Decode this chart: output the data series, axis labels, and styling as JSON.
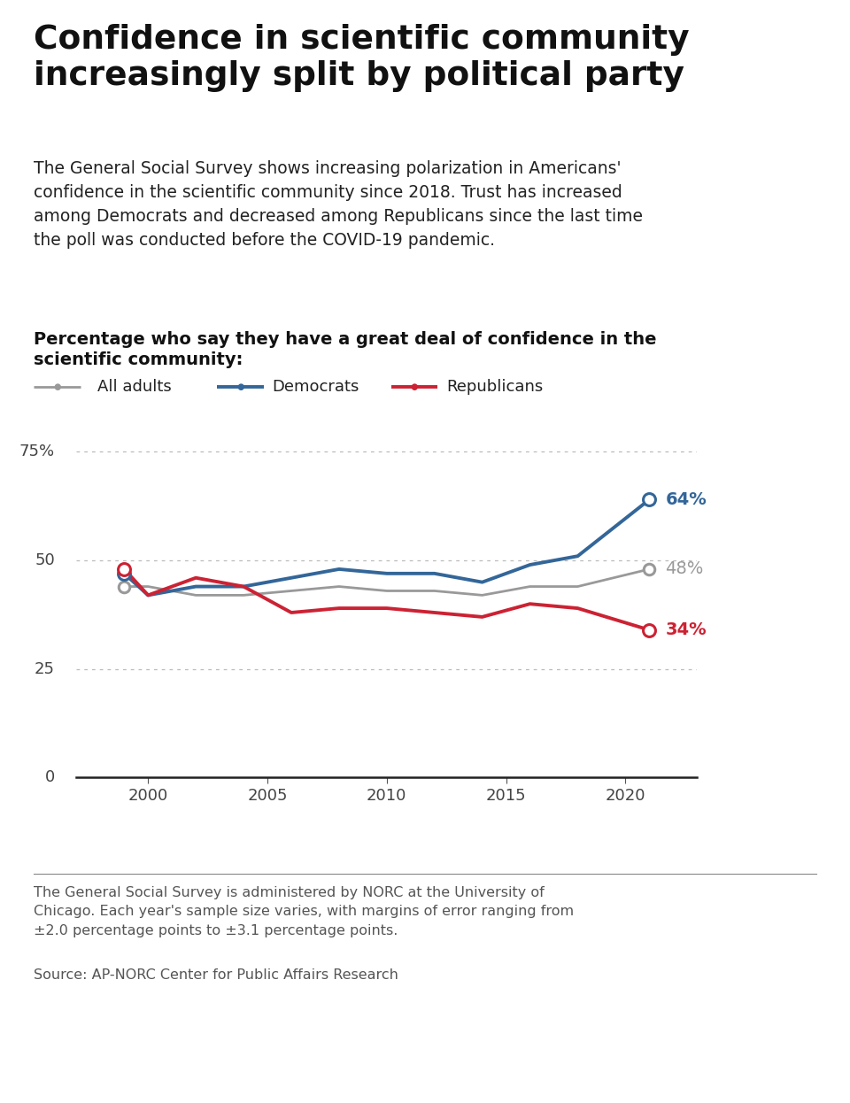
{
  "title": "Confidence in scientific community\nincreasingly split by political party",
  "subtitle": "The General Social Survey shows increasing polarization in Americans'\nconfidence in the scientific community since 2018. Trust has increased\namong Democrats and decreased among Republicans since the last time\nthe poll was conducted before the COVID-19 pandemic.",
  "chart_label": "Percentage who say they have a great deal of confidence in the\nscientific community:",
  "years_all": [
    1999,
    2000,
    2002,
    2004,
    2006,
    2008,
    2010,
    2012,
    2014,
    2016,
    2018,
    2021
  ],
  "all_adults": [
    44,
    44,
    42,
    42,
    43,
    44,
    43,
    43,
    42,
    44,
    44,
    48
  ],
  "years_dem": [
    1999,
    2000,
    2002,
    2004,
    2006,
    2008,
    2010,
    2012,
    2014,
    2016,
    2018,
    2021
  ],
  "democrats": [
    47,
    42,
    44,
    44,
    46,
    48,
    47,
    47,
    45,
    49,
    51,
    64
  ],
  "years_rep": [
    1999,
    2000,
    2002,
    2004,
    2006,
    2008,
    2010,
    2012,
    2014,
    2016,
    2018,
    2021
  ],
  "republicans": [
    48,
    42,
    46,
    44,
    38,
    39,
    39,
    38,
    37,
    40,
    39,
    34
  ],
  "color_all": "#999999",
  "color_dem": "#336699",
  "color_rep": "#cc2233",
  "ylim": [
    0,
    80
  ],
  "xlim": [
    1997,
    2023
  ],
  "xticks": [
    2000,
    2005,
    2010,
    2015,
    2020
  ],
  "footnote": "The General Social Survey is administered by NORC at the University of\nChicago. Each year's sample size varies, with margins of error ranging from\n±2.0 percentage points to ±3.1 percentage points.",
  "source": "Source: AP-NORC Center for Public Affairs Research",
  "background_color": "#ffffff"
}
